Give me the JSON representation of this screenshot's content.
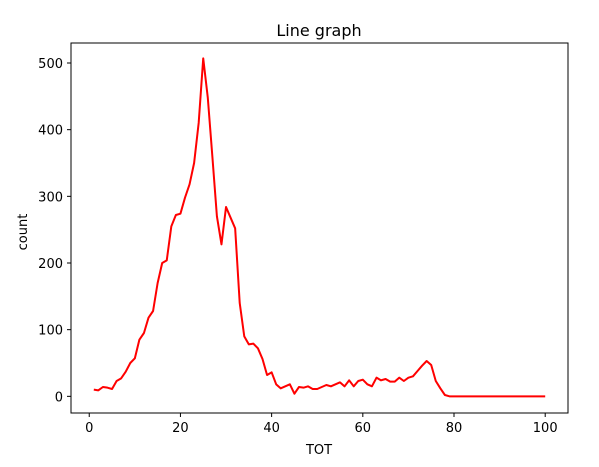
{
  "chart_data": {
    "type": "line",
    "title": "Line graph",
    "xlabel": "TOT",
    "ylabel": "count",
    "xlim": [
      -4,
      105
    ],
    "ylim": [
      -25,
      530
    ],
    "xticks": [
      0,
      20,
      40,
      60,
      80,
      100
    ],
    "yticks": [
      0,
      100,
      200,
      300,
      400,
      500
    ],
    "grid": false,
    "series": [
      {
        "color": "#ff0000",
        "x": [
          1,
          2,
          3,
          4,
          5,
          6,
          7,
          8,
          9,
          10,
          11,
          12,
          13,
          14,
          15,
          16,
          17,
          18,
          19,
          20,
          21,
          22,
          23,
          24,
          25,
          26,
          27,
          28,
          29,
          30,
          31,
          32,
          33,
          34,
          35,
          36,
          37,
          38,
          39,
          40,
          41,
          42,
          43,
          44,
          45,
          46,
          47,
          48,
          49,
          50,
          51,
          52,
          53,
          54,
          55,
          56,
          57,
          58,
          59,
          60,
          61,
          62,
          63,
          64,
          65,
          66,
          67,
          68,
          69,
          70,
          71,
          72,
          73,
          74,
          75,
          76,
          77,
          78,
          79,
          80,
          81,
          82,
          83,
          84,
          85,
          86,
          87,
          88,
          89,
          90,
          91,
          92,
          93,
          94,
          95,
          96,
          97,
          98,
          99,
          100
        ],
        "y": [
          10,
          9,
          14,
          13,
          11,
          23,
          27,
          37,
          50,
          57,
          85,
          95,
          118,
          128,
          170,
          200,
          204,
          255,
          272,
          274,
          298,
          318,
          350,
          410,
          507,
          448,
          360,
          270,
          228,
          284,
          268,
          252,
          140,
          90,
          78,
          79,
          72,
          56,
          32,
          36,
          18,
          12,
          15,
          18,
          4,
          14,
          13,
          15,
          11,
          11,
          14,
          17,
          15,
          18,
          21,
          15,
          24,
          15,
          23,
          25,
          18,
          15,
          28,
          24,
          26,
          22,
          22,
          28,
          23,
          28,
          30,
          38,
          46,
          53,
          47,
          23,
          12,
          2,
          0,
          0,
          0,
          0,
          0,
          0,
          0,
          0,
          0,
          0,
          0,
          0,
          0,
          0,
          0,
          0,
          0,
          0,
          0,
          0,
          0,
          0
        ]
      }
    ]
  }
}
